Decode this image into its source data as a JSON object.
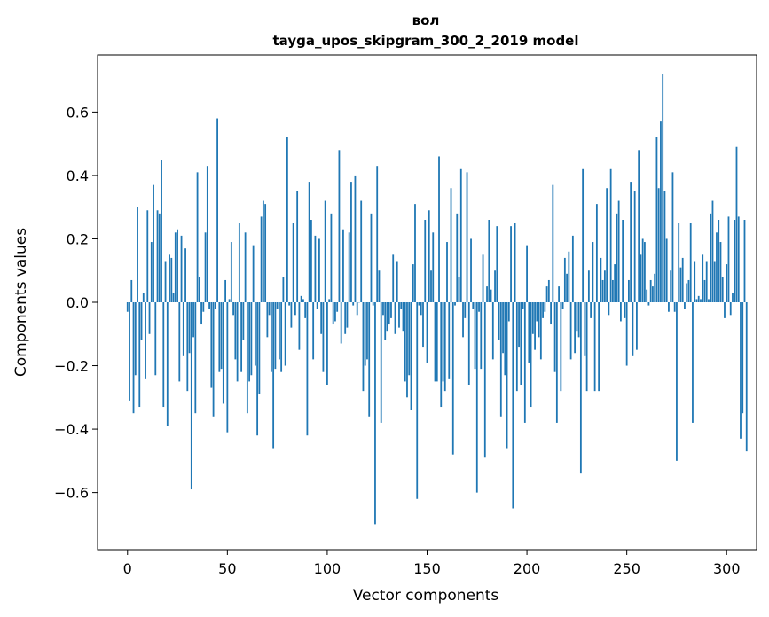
{
  "chart_data": {
    "type": "bar",
    "title": "вол",
    "subtitle": "tayga_upos_skipgram_300_2_2019 model",
    "xlabel": "Vector components",
    "ylabel": "Components values",
    "xlim": [
      -15,
      315
    ],
    "ylim": [
      -0.78,
      0.78
    ],
    "xticks": [
      0,
      50,
      100,
      150,
      200,
      250,
      300
    ],
    "xtick_labels": [
      "0",
      "50",
      "100",
      "150",
      "200",
      "250",
      "300"
    ],
    "yticks": [
      -0.6,
      -0.4,
      -0.2,
      0.0,
      0.2,
      0.4,
      0.6
    ],
    "ytick_labels": [
      "−0.6",
      "−0.4",
      "−0.2",
      "0.0",
      "0.2",
      "0.4",
      "0.6"
    ],
    "bar_color": "#1f77b4",
    "values": [
      -0.03,
      -0.31,
      0.07,
      -0.35,
      -0.23,
      0.3,
      -0.33,
      -0.12,
      0.03,
      -0.24,
      0.29,
      -0.1,
      0.19,
      0.37,
      -0.23,
      0.29,
      0.28,
      0.45,
      -0.33,
      0.13,
      -0.39,
      0.15,
      0.14,
      0.03,
      0.22,
      0.23,
      -0.25,
      0.21,
      -0.17,
      0.17,
      -0.28,
      -0.16,
      -0.59,
      -0.11,
      -0.35,
      0.41,
      0.08,
      -0.07,
      -0.03,
      0.22,
      0.43,
      -0.02,
      -0.27,
      -0.36,
      -0.02,
      0.58,
      -0.22,
      -0.21,
      -0.32,
      0.07,
      -0.41,
      0.01,
      0.19,
      -0.04,
      -0.18,
      -0.25,
      0.25,
      -0.22,
      -0.12,
      0.22,
      -0.35,
      -0.25,
      -0.23,
      0.18,
      -0.2,
      -0.42,
      -0.29,
      0.27,
      0.32,
      0.31,
      -0.11,
      -0.04,
      -0.22,
      -0.46,
      -0.21,
      -0.02,
      -0.18,
      -0.22,
      0.08,
      -0.2,
      0.52,
      -0.01,
      -0.08,
      0.25,
      -0.04,
      0.35,
      -0.15,
      0.02,
      0.01,
      -0.05,
      -0.42,
      0.38,
      0.26,
      -0.18,
      0.21,
      -0.02,
      0.2,
      -0.1,
      -0.22,
      0.32,
      -0.26,
      0.01,
      0.28,
      -0.07,
      -0.06,
      -0.03,
      0.48,
      -0.13,
      0.23,
      -0.1,
      -0.08,
      0.22,
      0.38,
      -0.01,
      0.4,
      -0.04,
      0.0,
      0.32,
      -0.28,
      -0.2,
      -0.18,
      -0.36,
      0.28,
      -0.01,
      -0.7,
      0.43,
      0.1,
      -0.38,
      -0.04,
      -0.12,
      -0.09,
      -0.07,
      -0.05,
      0.15,
      -0.1,
      0.13,
      -0.08,
      -0.02,
      -0.09,
      -0.25,
      -0.3,
      -0.23,
      -0.34,
      0.12,
      0.31,
      -0.62,
      -0.01,
      -0.04,
      -0.14,
      0.26,
      -0.19,
      0.29,
      0.1,
      0.22,
      -0.25,
      -0.25,
      0.46,
      -0.33,
      -0.25,
      -0.28,
      0.19,
      -0.24,
      0.36,
      -0.48,
      -0.01,
      0.28,
      0.08,
      0.42,
      -0.11,
      -0.05,
      0.41,
      -0.26,
      0.2,
      -0.02,
      -0.21,
      -0.6,
      -0.03,
      -0.21,
      0.15,
      -0.49,
      0.05,
      0.26,
      0.04,
      -0.18,
      0.1,
      0.24,
      -0.12,
      -0.36,
      -0.16,
      -0.23,
      -0.46,
      -0.06,
      0.24,
      -0.65,
      0.25,
      -0.28,
      -0.14,
      -0.26,
      -0.02,
      -0.38,
      0.18,
      -0.19,
      -0.33,
      -0.1,
      -0.15,
      -0.06,
      -0.11,
      -0.18,
      -0.05,
      -0.03,
      0.05,
      0.07,
      -0.07,
      0.37,
      -0.22,
      -0.38,
      0.05,
      -0.28,
      -0.02,
      0.14,
      0.09,
      0.16,
      -0.18,
      0.21,
      -0.16,
      -0.09,
      -0.11,
      -0.54,
      0.42,
      -0.17,
      -0.28,
      0.1,
      -0.05,
      0.19,
      -0.28,
      0.31,
      -0.28,
      0.14,
      0.07,
      0.1,
      0.36,
      -0.04,
      0.42,
      0.07,
      0.12,
      0.28,
      0.32,
      -0.06,
      0.26,
      -0.05,
      -0.2,
      0.07,
      0.38,
      -0.17,
      0.35,
      -0.15,
      0.48,
      0.15,
      0.2,
      0.19,
      0.04,
      -0.01,
      0.07,
      0.05,
      0.09,
      0.52,
      0.36,
      0.57,
      0.72,
      0.35,
      0.2,
      -0.03,
      0.1,
      0.41,
      -0.03,
      -0.5,
      0.25,
      0.11,
      0.14,
      -0.02,
      0.06,
      0.07,
      0.25,
      -0.38,
      0.13,
      0.01,
      0.02,
      0.01,
      0.15,
      0.07,
      0.13,
      0.01,
      0.28,
      0.32,
      0.13,
      0.22,
      0.26,
      0.19,
      0.08,
      -0.05,
      0.12,
      0.27,
      -0.04,
      0.03,
      0.26,
      0.49,
      0.27,
      -0.43,
      -0.35,
      0.26,
      -0.47
    ]
  }
}
